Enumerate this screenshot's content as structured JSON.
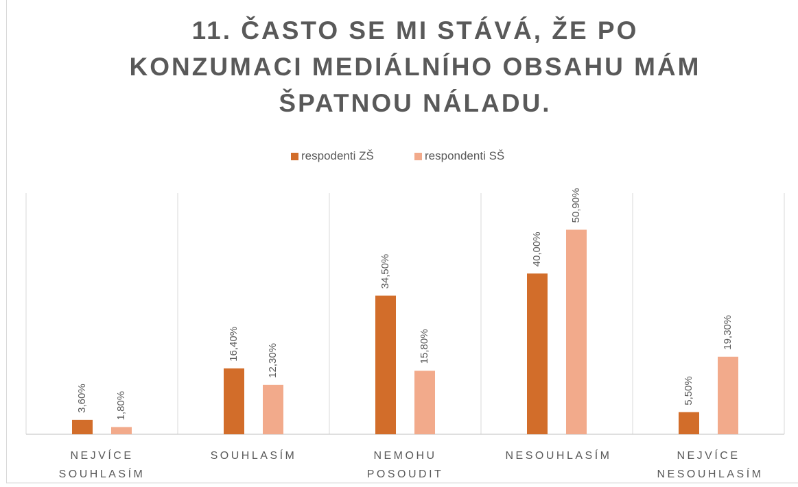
{
  "chart_data": {
    "type": "bar",
    "title": "11. ČASTO SE MI STÁVÁ, ŽE PO KONZUMACI MEDIÁLNÍHO OBSAHU MÁM ŠPATNOU NÁLADU.",
    "categories": [
      "NEJVÍCE SOUHLASÍM",
      "SOUHLASÍM",
      "NEMOHU POSOUDIT",
      "NESOUHLASÍM",
      "NEJVÍCE NESOUHLASÍM"
    ],
    "series": [
      {
        "name": "respodenti ZŠ",
        "color": "#d26d2a",
        "values": [
          3.6,
          16.4,
          34.5,
          40.0,
          5.5
        ],
        "value_labels": [
          "3,60%",
          "16,40%",
          "34,50%",
          "40,00%",
          "5,50%"
        ]
      },
      {
        "name": "respondenti SŠ",
        "color": "#f2aa8b",
        "values": [
          1.8,
          12.3,
          15.8,
          50.9,
          19.3
        ],
        "value_labels": [
          "1,80%",
          "12,30%",
          "15,80%",
          "50,90%",
          "19,30%"
        ]
      }
    ],
    "ylim": [
      0,
      60
    ],
    "legend": "top"
  }
}
